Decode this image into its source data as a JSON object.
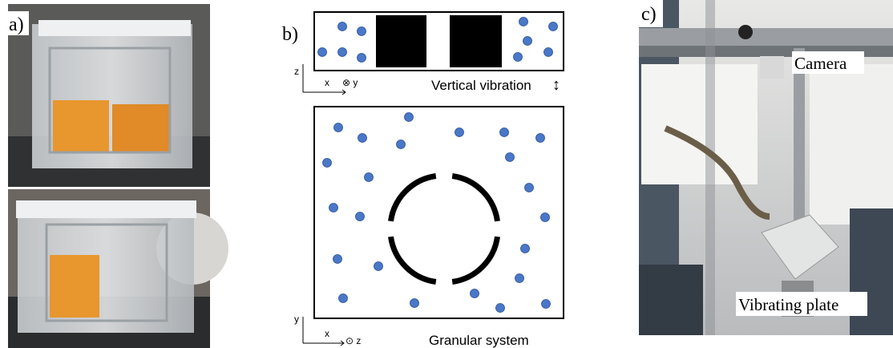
{
  "panel_a": {
    "label": "a)"
  },
  "panel_b": {
    "label": "b)",
    "top": {
      "axis_vertical": "z",
      "axis_horizontal": "x",
      "axis_depth": "⊗ y",
      "caption": "Vertical vibration",
      "arrow": "↕"
    },
    "bottom": {
      "axis_vertical": "y",
      "axis_horizontal": "x",
      "axis_depth": "⊙ z",
      "caption": "Granular system"
    }
  },
  "panel_c": {
    "label": "c)",
    "camera": "Camera",
    "plate": "Vibrating plate"
  }
}
